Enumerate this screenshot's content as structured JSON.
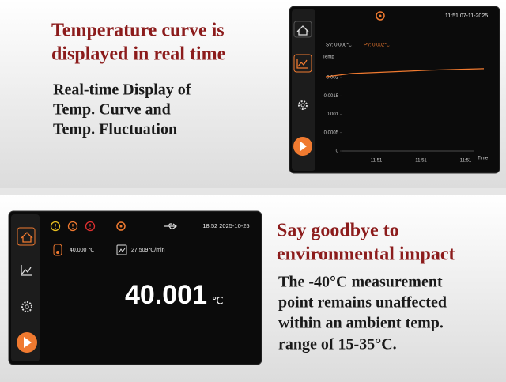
{
  "top_panel": {
    "heading": [
      "Temperature curve is",
      "displayed in real time"
    ],
    "description": [
      "Real-time Display of",
      "Temp. Curve and",
      "Temp. Fluctuation"
    ],
    "screen": {
      "clock": "11:51 07-11-2025",
      "sv": "SV: 0.000℃",
      "pv": "PV: 0.002℃",
      "chart": {
        "type": "line",
        "y_label": "Temp",
        "x_label": "Time",
        "x_tick_labels": [
          "11:51",
          "11:51",
          "11:51"
        ],
        "values": [
          0.00202,
          0.00211,
          0.00214,
          0.00217,
          0.0022,
          0.00222,
          0.00224
        ],
        "ylim": [
          0,
          0.0025
        ],
        "yticks": [
          0,
          0.0005,
          0.001,
          0.0015,
          0.002
        ],
        "color": "#f07a30"
      }
    }
  },
  "bottom_panel": {
    "heading": [
      "Say goodbye to",
      "environmental impact"
    ],
    "description": [
      "The -40°C measurement",
      "point remains unaffected",
      "within an ambient temp.",
      "range of 15-35°C."
    ],
    "screen": {
      "clock": "18:52 2025-10-25",
      "set_value": "40.000 ℃",
      "rate": "27.509℃/min",
      "reading": "40.001",
      "unit": "℃"
    }
  }
}
